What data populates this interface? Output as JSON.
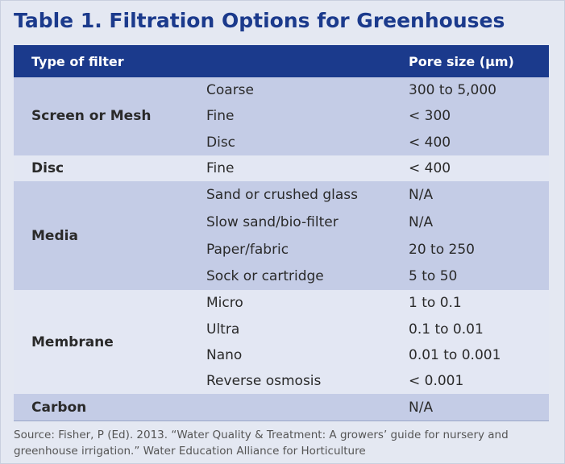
{
  "title": "Table 1. Filtration Options for Greenhouses",
  "table": {
    "header": [
      "Type of filter",
      "Pore size (µm)"
    ],
    "groups": [
      {
        "name": "Screen or Mesh",
        "rows": [
          {
            "type": "Coarse",
            "pore": "300 to 5,000"
          },
          {
            "type": "Fine",
            "pore": "< 300"
          },
          {
            "type": "Disc",
            "pore": "< 400"
          }
        ]
      },
      {
        "name": "Disc",
        "rows": [
          {
            "type": "Fine",
            "pore": "< 400"
          }
        ]
      },
      {
        "name": "Media",
        "rows": [
          {
            "type": "Sand or crushed glass",
            "pore": "N/A"
          },
          {
            "type": "Slow sand/bio-filter",
            "pore": "N/A"
          },
          {
            "type": "Paper/fabric",
            "pore": "20 to 250"
          },
          {
            "type": "Sock or cartridge",
            "pore": "5 to 50"
          }
        ]
      },
      {
        "name": "Membrane",
        "rows": [
          {
            "type": "Micro",
            "pore": "1 to 0.1"
          },
          {
            "type": "Ultra",
            "pore": "0.1 to 0.01"
          },
          {
            "type": "Nano",
            "pore": "0.01 to 0.001"
          },
          {
            "type": "Reverse osmosis",
            "pore": "< 0.001"
          }
        ]
      },
      {
        "name": "Carbon",
        "rows": [
          {
            "pore": "N/A"
          }
        ]
      }
    ]
  },
  "source": [
    "Source: Fisher, P (Ed). 2013. “Water Quality & Treatment: A growers’ guide for nursery and",
    "greenhouse irrigation.” Water Education Alliance for Horticulture"
  ]
}
